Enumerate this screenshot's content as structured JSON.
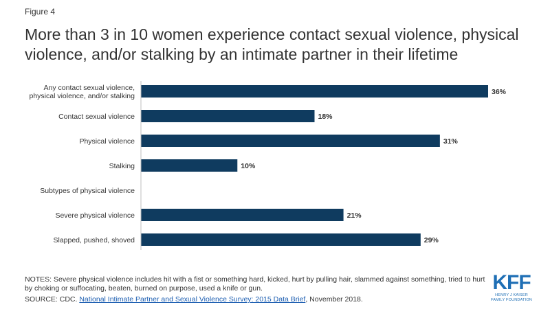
{
  "figure_label": "Figure 4",
  "title": "More than 3 in 10 women experience contact sexual violence, physical violence, and/or stalking by an intimate partner in their lifetime",
  "chart_data": {
    "type": "bar",
    "orientation": "horizontal",
    "title": "More than 3 in 10 women experience contact sexual violence, physical violence, and/or stalking by an intimate partner in their lifetime",
    "categories": [
      [
        "Any contact sexual violence,",
        "physical violence, and/or stalking"
      ],
      [
        "Contact sexual violence"
      ],
      [
        "Physical violence"
      ],
      [
        "Stalking"
      ],
      [
        "Subtypes of physical violence"
      ],
      [
        "Severe physical violence"
      ],
      [
        "Slapped, pushed, shoved"
      ]
    ],
    "values": [
      36,
      18,
      31,
      10,
      null,
      21,
      29
    ],
    "value_labels": [
      "36%",
      "18%",
      "31%",
      "10%",
      "",
      "21%",
      "29%"
    ],
    "xlim": [
      0,
      36
    ],
    "grid": false,
    "legend": "none",
    "bar_color": "#0f3b5f"
  },
  "notes": "NOTES: Severe physical violence includes hit with a fist or something hard, kicked, hurt by pulling hair, slammed against something, tried to hurt by choking or suffocating, beaten, burned on purpose, used a knife or gun.",
  "source": {
    "prefix": "SOURCE: CDC. ",
    "link_text": "National Intimate Partner and Sexual Violence Survey: 2015 Data Brief",
    "suffix": ", November 2018."
  },
  "logo": {
    "main": "KFF",
    "line1": "HENRY J KAISER",
    "line2": "FAMILY FOUNDATION",
    "color": "#1f6fb5"
  }
}
